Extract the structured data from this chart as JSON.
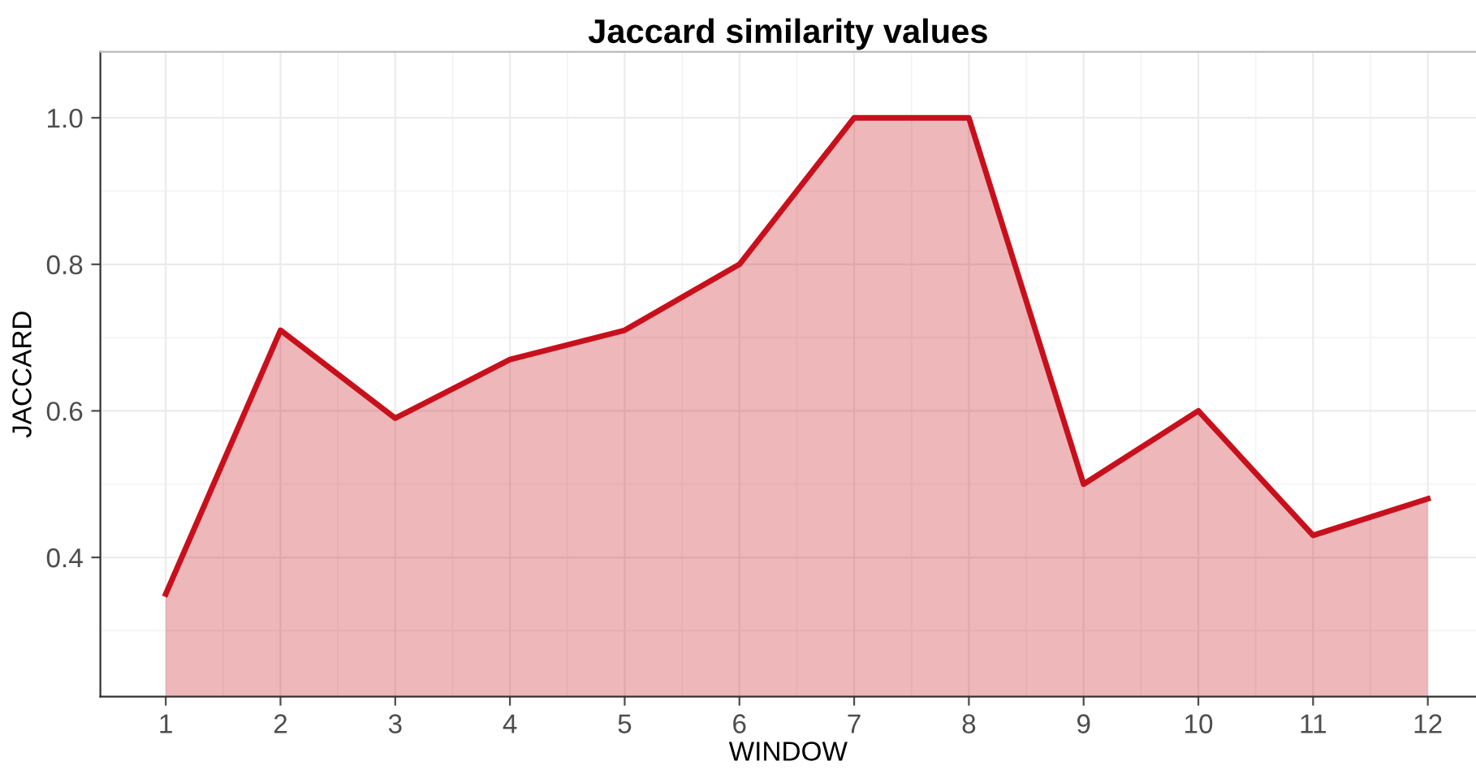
{
  "chart_data": {
    "type": "area",
    "title": "Jaccard similarity values",
    "xlabel": "WINDOW",
    "ylabel": "JACCARD",
    "x": [
      1,
      2,
      3,
      4,
      5,
      6,
      7,
      8,
      9,
      10,
      11,
      12
    ],
    "series": [
      {
        "color": "#c8101c",
        "values": [
          0.35,
          0.71,
          0.59,
          0.67,
          0.71,
          0.8,
          1.0,
          1.0,
          0.5,
          0.6,
          0.43,
          0.48
        ]
      }
    ],
    "xlim": [
      0.43,
      12.42
    ],
    "xticks": [
      1,
      2,
      3,
      4,
      5,
      6,
      7,
      8,
      9,
      10,
      11,
      12
    ],
    "ylim": [
      0.21,
      1.09
    ],
    "yticks": [
      0.4,
      0.6,
      0.8,
      {
        "value": 1.0,
        "label": "1.0"
      }
    ],
    "grid": true,
    "line_style": "solid"
  }
}
